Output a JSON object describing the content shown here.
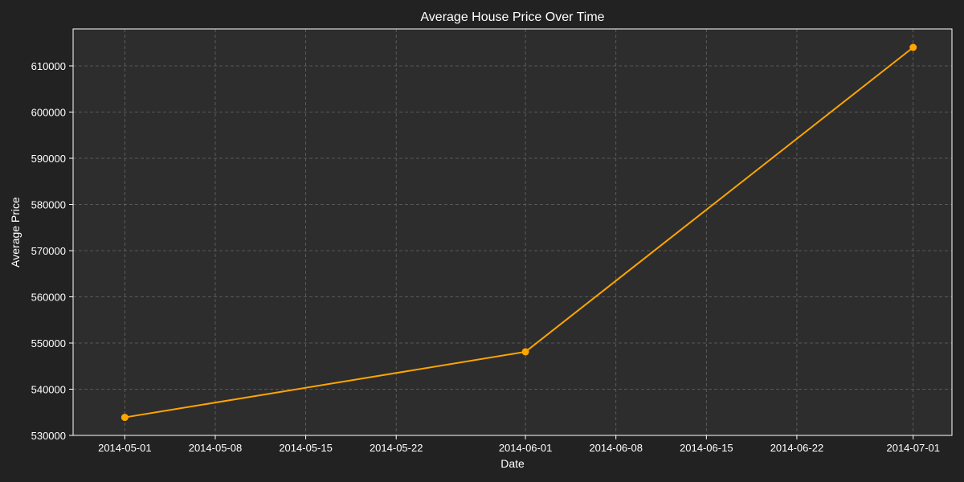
{
  "chart_data": {
    "type": "line",
    "title": "Average House Price Over Time",
    "xlabel": "Date",
    "ylabel": "Average Price",
    "x": [
      "2014-05-01",
      "2014-06-01",
      "2014-07-01"
    ],
    "series": [
      {
        "values": [
          533900,
          548100,
          614000
        ]
      }
    ],
    "xlim": [
      "2014-04-27",
      "2014-07-04"
    ],
    "ylim": [
      530000,
      618000
    ],
    "x_ticks": [
      "2014-05-01",
      "2014-05-08",
      "2014-05-15",
      "2014-05-22",
      "2014-06-01",
      "2014-06-08",
      "2014-06-15",
      "2014-06-22",
      "2014-07-01"
    ],
    "y_ticks": [
      530000,
      540000,
      550000,
      560000,
      570000,
      580000,
      590000,
      600000,
      610000
    ],
    "y_tick_labels": [
      "530000",
      "540000",
      "550000",
      "560000",
      "570000",
      "580000",
      "590000",
      "600000",
      "610000"
    ],
    "grid": true,
    "markers": true,
    "line_color": "#ffa500",
    "plot_background": "#2d2d2d",
    "figure_background": "#222222",
    "grid_color": "#666666"
  }
}
